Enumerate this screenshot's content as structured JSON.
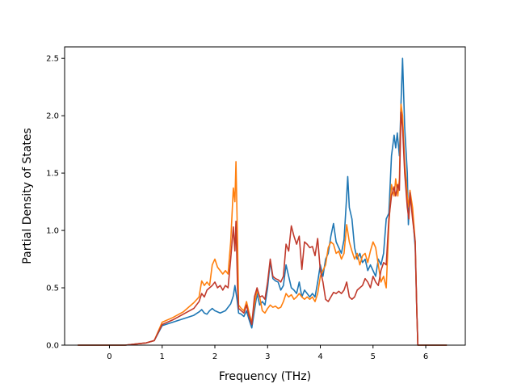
{
  "chart_data": {
    "type": "line",
    "title": "",
    "xlabel": "Frequency (THz)",
    "ylabel": "Partial Density of States",
    "xlim": [
      -0.85,
      6.75
    ],
    "ylim": [
      0.0,
      2.6
    ],
    "xticks": [
      0,
      1,
      2,
      3,
      4,
      5,
      6
    ],
    "yticks": [
      0.0,
      0.5,
      1.0,
      1.5,
      2.0,
      2.5
    ],
    "xtick_labels": [
      "0",
      "1",
      "2",
      "3",
      "4",
      "5",
      "6"
    ],
    "ytick_labels": [
      "0.0",
      "0.5",
      "1.0",
      "1.5",
      "2.0",
      "2.5"
    ],
    "grid": false,
    "legend": false,
    "series": [
      {
        "color": "#1f77b4",
        "points": [
          [
            -0.6,
            0
          ],
          [
            0,
            0
          ],
          [
            0.3,
            0
          ],
          [
            0.5,
            0.01
          ],
          [
            0.7,
            0.02
          ],
          [
            0.85,
            0.04
          ],
          [
            1.0,
            0.17
          ],
          [
            1.2,
            0.2
          ],
          [
            1.4,
            0.23
          ],
          [
            1.6,
            0.26
          ],
          [
            1.7,
            0.29
          ],
          [
            1.75,
            0.31
          ],
          [
            1.8,
            0.28
          ],
          [
            1.85,
            0.27
          ],
          [
            1.9,
            0.3
          ],
          [
            1.95,
            0.32
          ],
          [
            2.0,
            0.3
          ],
          [
            2.1,
            0.28
          ],
          [
            2.2,
            0.3
          ],
          [
            2.3,
            0.36
          ],
          [
            2.35,
            0.43
          ],
          [
            2.38,
            0.52
          ],
          [
            2.42,
            0.4
          ],
          [
            2.45,
            0.28
          ],
          [
            2.5,
            0.27
          ],
          [
            2.55,
            0.25
          ],
          [
            2.6,
            0.3
          ],
          [
            2.65,
            0.22
          ],
          [
            2.7,
            0.15
          ],
          [
            2.75,
            0.3
          ],
          [
            2.8,
            0.45
          ],
          [
            2.85,
            0.35
          ],
          [
            2.9,
            0.38
          ],
          [
            2.95,
            0.35
          ],
          [
            3.0,
            0.5
          ],
          [
            3.05,
            0.73
          ],
          [
            3.1,
            0.58
          ],
          [
            3.15,
            0.56
          ],
          [
            3.2,
            0.55
          ],
          [
            3.25,
            0.48
          ],
          [
            3.3,
            0.52
          ],
          [
            3.35,
            0.7
          ],
          [
            3.4,
            0.6
          ],
          [
            3.45,
            0.5
          ],
          [
            3.5,
            0.48
          ],
          [
            3.55,
            0.45
          ],
          [
            3.6,
            0.55
          ],
          [
            3.65,
            0.42
          ],
          [
            3.7,
            0.48
          ],
          [
            3.75,
            0.45
          ],
          [
            3.8,
            0.42
          ],
          [
            3.85,
            0.45
          ],
          [
            3.9,
            0.42
          ],
          [
            3.95,
            0.55
          ],
          [
            4.0,
            0.7
          ],
          [
            4.05,
            0.6
          ],
          [
            4.1,
            0.75
          ],
          [
            4.15,
            0.8
          ],
          [
            4.2,
            0.95
          ],
          [
            4.25,
            1.06
          ],
          [
            4.3,
            0.9
          ],
          [
            4.35,
            0.85
          ],
          [
            4.4,
            0.8
          ],
          [
            4.45,
            0.92
          ],
          [
            4.5,
            1.3
          ],
          [
            4.52,
            1.47
          ],
          [
            4.55,
            1.2
          ],
          [
            4.6,
            1.1
          ],
          [
            4.65,
            0.85
          ],
          [
            4.7,
            0.75
          ],
          [
            4.75,
            0.8
          ],
          [
            4.8,
            0.72
          ],
          [
            4.85,
            0.75
          ],
          [
            4.9,
            0.65
          ],
          [
            4.95,
            0.7
          ],
          [
            5.0,
            0.65
          ],
          [
            5.05,
            0.6
          ],
          [
            5.1,
            0.75
          ],
          [
            5.15,
            0.7
          ],
          [
            5.2,
            0.8
          ],
          [
            5.25,
            1.1
          ],
          [
            5.3,
            1.15
          ],
          [
            5.35,
            1.65
          ],
          [
            5.4,
            1.83
          ],
          [
            5.43,
            1.72
          ],
          [
            5.46,
            1.85
          ],
          [
            5.5,
            1.65
          ],
          [
            5.53,
            2.1
          ],
          [
            5.56,
            2.5
          ],
          [
            5.6,
            1.9
          ],
          [
            5.65,
            1.5
          ],
          [
            5.67,
            1.05
          ],
          [
            5.7,
            1.3
          ],
          [
            5.75,
            1.15
          ],
          [
            5.8,
            0.85
          ],
          [
            5.83,
            0.3
          ],
          [
            5.85,
            0.0
          ],
          [
            6.0,
            0
          ],
          [
            6.4,
            0
          ]
        ]
      },
      {
        "color": "#ff7f0e",
        "points": [
          [
            -0.6,
            0
          ],
          [
            0,
            0
          ],
          [
            0.3,
            0
          ],
          [
            0.5,
            0.01
          ],
          [
            0.7,
            0.02
          ],
          [
            0.85,
            0.04
          ],
          [
            1.0,
            0.2
          ],
          [
            1.2,
            0.24
          ],
          [
            1.4,
            0.29
          ],
          [
            1.6,
            0.37
          ],
          [
            1.7,
            0.42
          ],
          [
            1.75,
            0.56
          ],
          [
            1.8,
            0.52
          ],
          [
            1.85,
            0.55
          ],
          [
            1.9,
            0.52
          ],
          [
            1.95,
            0.7
          ],
          [
            2.0,
            0.75
          ],
          [
            2.05,
            0.68
          ],
          [
            2.1,
            0.65
          ],
          [
            2.15,
            0.62
          ],
          [
            2.2,
            0.65
          ],
          [
            2.25,
            0.62
          ],
          [
            2.3,
            0.9
          ],
          [
            2.35,
            1.37
          ],
          [
            2.38,
            1.25
          ],
          [
            2.4,
            1.6
          ],
          [
            2.43,
            0.9
          ],
          [
            2.45,
            0.35
          ],
          [
            2.5,
            0.32
          ],
          [
            2.55,
            0.3
          ],
          [
            2.6,
            0.38
          ],
          [
            2.65,
            0.28
          ],
          [
            2.7,
            0.2
          ],
          [
            2.75,
            0.35
          ],
          [
            2.8,
            0.48
          ],
          [
            2.85,
            0.42
          ],
          [
            2.9,
            0.3
          ],
          [
            2.95,
            0.28
          ],
          [
            3.0,
            0.32
          ],
          [
            3.05,
            0.35
          ],
          [
            3.1,
            0.33
          ],
          [
            3.15,
            0.34
          ],
          [
            3.2,
            0.32
          ],
          [
            3.25,
            0.33
          ],
          [
            3.3,
            0.38
          ],
          [
            3.35,
            0.45
          ],
          [
            3.4,
            0.42
          ],
          [
            3.45,
            0.44
          ],
          [
            3.5,
            0.4
          ],
          [
            3.55,
            0.42
          ],
          [
            3.6,
            0.45
          ],
          [
            3.65,
            0.42
          ],
          [
            3.7,
            0.4
          ],
          [
            3.75,
            0.42
          ],
          [
            3.8,
            0.4
          ],
          [
            3.85,
            0.42
          ],
          [
            3.9,
            0.38
          ],
          [
            3.95,
            0.45
          ],
          [
            4.0,
            0.6
          ],
          [
            4.05,
            0.65
          ],
          [
            4.1,
            0.7
          ],
          [
            4.15,
            0.85
          ],
          [
            4.2,
            0.9
          ],
          [
            4.25,
            0.88
          ],
          [
            4.3,
            0.8
          ],
          [
            4.35,
            0.82
          ],
          [
            4.4,
            0.75
          ],
          [
            4.45,
            0.8
          ],
          [
            4.5,
            1.05
          ],
          [
            4.55,
            0.9
          ],
          [
            4.6,
            0.82
          ],
          [
            4.65,
            0.75
          ],
          [
            4.7,
            0.8
          ],
          [
            4.75,
            0.7
          ],
          [
            4.8,
            0.78
          ],
          [
            4.85,
            0.8
          ],
          [
            4.9,
            0.72
          ],
          [
            4.95,
            0.82
          ],
          [
            5.0,
            0.9
          ],
          [
            5.05,
            0.85
          ],
          [
            5.1,
            0.7
          ],
          [
            5.15,
            0.55
          ],
          [
            5.2,
            0.6
          ],
          [
            5.25,
            0.5
          ],
          [
            5.3,
            1.05
          ],
          [
            5.35,
            1.4
          ],
          [
            5.4,
            1.3
          ],
          [
            5.43,
            1.45
          ],
          [
            5.47,
            1.3
          ],
          [
            5.5,
            1.45
          ],
          [
            5.53,
            2.1
          ],
          [
            5.56,
            2.0
          ],
          [
            5.6,
            1.6
          ],
          [
            5.65,
            1.3
          ],
          [
            5.68,
            1.2
          ],
          [
            5.7,
            1.35
          ],
          [
            5.75,
            1.2
          ],
          [
            5.8,
            0.9
          ],
          [
            5.83,
            0.3
          ],
          [
            5.85,
            0.0
          ],
          [
            6.0,
            0
          ],
          [
            6.4,
            0
          ]
        ]
      },
      {
        "color": "#c0392b",
        "points": [
          [
            -0.6,
            0
          ],
          [
            0,
            0
          ],
          [
            0.3,
            0
          ],
          [
            0.5,
            0.01
          ],
          [
            0.7,
            0.02
          ],
          [
            0.85,
            0.04
          ],
          [
            1.0,
            0.18
          ],
          [
            1.2,
            0.22
          ],
          [
            1.4,
            0.27
          ],
          [
            1.6,
            0.32
          ],
          [
            1.7,
            0.38
          ],
          [
            1.75,
            0.45
          ],
          [
            1.8,
            0.42
          ],
          [
            1.85,
            0.48
          ],
          [
            1.9,
            0.5
          ],
          [
            1.95,
            0.52
          ],
          [
            2.0,
            0.55
          ],
          [
            2.05,
            0.5
          ],
          [
            2.1,
            0.52
          ],
          [
            2.15,
            0.48
          ],
          [
            2.2,
            0.52
          ],
          [
            2.25,
            0.5
          ],
          [
            2.3,
            0.75
          ],
          [
            2.35,
            1.03
          ],
          [
            2.38,
            0.82
          ],
          [
            2.4,
            1.08
          ],
          [
            2.43,
            0.5
          ],
          [
            2.45,
            0.32
          ],
          [
            2.5,
            0.3
          ],
          [
            2.55,
            0.28
          ],
          [
            2.6,
            0.35
          ],
          [
            2.65,
            0.25
          ],
          [
            2.7,
            0.18
          ],
          [
            2.75,
            0.42
          ],
          [
            2.8,
            0.5
          ],
          [
            2.85,
            0.42
          ],
          [
            2.9,
            0.43
          ],
          [
            2.95,
            0.4
          ],
          [
            3.0,
            0.55
          ],
          [
            3.05,
            0.75
          ],
          [
            3.1,
            0.6
          ],
          [
            3.15,
            0.58
          ],
          [
            3.2,
            0.57
          ],
          [
            3.25,
            0.55
          ],
          [
            3.3,
            0.6
          ],
          [
            3.35,
            0.88
          ],
          [
            3.4,
            0.82
          ],
          [
            3.45,
            1.04
          ],
          [
            3.5,
            0.95
          ],
          [
            3.55,
            0.88
          ],
          [
            3.6,
            0.95
          ],
          [
            3.65,
            0.66
          ],
          [
            3.7,
            0.9
          ],
          [
            3.75,
            0.88
          ],
          [
            3.8,
            0.85
          ],
          [
            3.85,
            0.86
          ],
          [
            3.9,
            0.78
          ],
          [
            3.95,
            0.93
          ],
          [
            4.0,
            0.65
          ],
          [
            4.05,
            0.55
          ],
          [
            4.1,
            0.4
          ],
          [
            4.15,
            0.38
          ],
          [
            4.2,
            0.42
          ],
          [
            4.25,
            0.46
          ],
          [
            4.3,
            0.45
          ],
          [
            4.35,
            0.47
          ],
          [
            4.4,
            0.45
          ],
          [
            4.45,
            0.48
          ],
          [
            4.5,
            0.55
          ],
          [
            4.55,
            0.42
          ],
          [
            4.6,
            0.4
          ],
          [
            4.65,
            0.42
          ],
          [
            4.7,
            0.48
          ],
          [
            4.75,
            0.5
          ],
          [
            4.8,
            0.52
          ],
          [
            4.85,
            0.58
          ],
          [
            4.9,
            0.55
          ],
          [
            4.95,
            0.5
          ],
          [
            5.0,
            0.6
          ],
          [
            5.05,
            0.55
          ],
          [
            5.1,
            0.52
          ],
          [
            5.15,
            0.65
          ],
          [
            5.2,
            0.72
          ],
          [
            5.25,
            0.7
          ],
          [
            5.3,
            1.1
          ],
          [
            5.35,
            1.3
          ],
          [
            5.4,
            1.38
          ],
          [
            5.43,
            1.3
          ],
          [
            5.47,
            1.4
          ],
          [
            5.5,
            1.35
          ],
          [
            5.53,
            2.03
          ],
          [
            5.56,
            1.9
          ],
          [
            5.6,
            1.5
          ],
          [
            5.65,
            1.2
          ],
          [
            5.68,
            1.1
          ],
          [
            5.7,
            1.33
          ],
          [
            5.75,
            1.1
          ],
          [
            5.8,
            0.9
          ],
          [
            5.83,
            0.3
          ],
          [
            5.85,
            0.0
          ],
          [
            6.0,
            0
          ],
          [
            6.4,
            0
          ]
        ]
      }
    ]
  }
}
